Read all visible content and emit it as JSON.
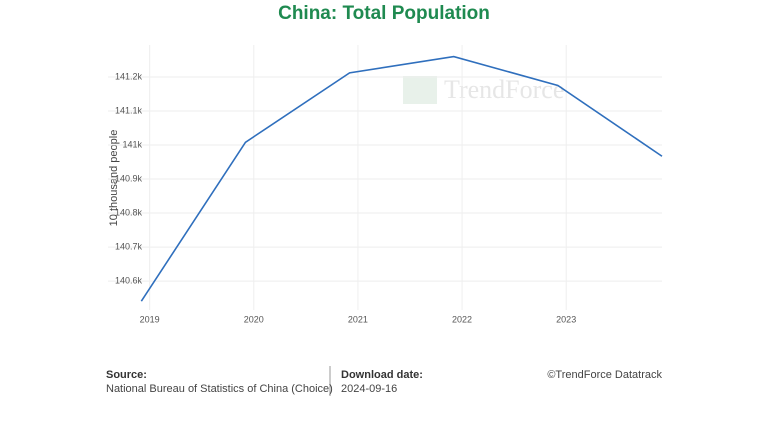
{
  "chart_data": {
    "type": "line",
    "title": "China: Total Population",
    "y_label": "10 thousand people",
    "watermark": "TrendForce",
    "x": [
      2018.92,
      2019.92,
      2020.92,
      2021.92,
      2022.92,
      2023.92
    ],
    "series": [
      {
        "name": "Total Population",
        "color": "#2f6fbd",
        "values": [
          140541,
          141008,
          141212,
          141260,
          141175,
          140967
        ]
      }
    ],
    "xlim": [
      2018.6,
      2023.92
    ],
    "xticks": [
      2019,
      2020,
      2021,
      2022,
      2023
    ],
    "ylim": [
      140515,
      141294
    ],
    "yticks": [
      {
        "value": 140600,
        "label": "140.6k"
      },
      {
        "value": 140700,
        "label": "140.7k"
      },
      {
        "value": 140800,
        "label": "140.8k"
      },
      {
        "value": 140900,
        "label": "140.9k"
      },
      {
        "value": 141000,
        "label": "141k"
      },
      {
        "value": 141100,
        "label": "141.1k"
      },
      {
        "value": 141200,
        "label": "141.2k"
      }
    ],
    "grid": true
  },
  "footer": {
    "source_label": "Source:",
    "source": "National Bureau of Statistics of China (Choice)",
    "date_label": "Download date:",
    "date": "2024-09-16",
    "copyright": "©TrendForce Datatrack"
  }
}
